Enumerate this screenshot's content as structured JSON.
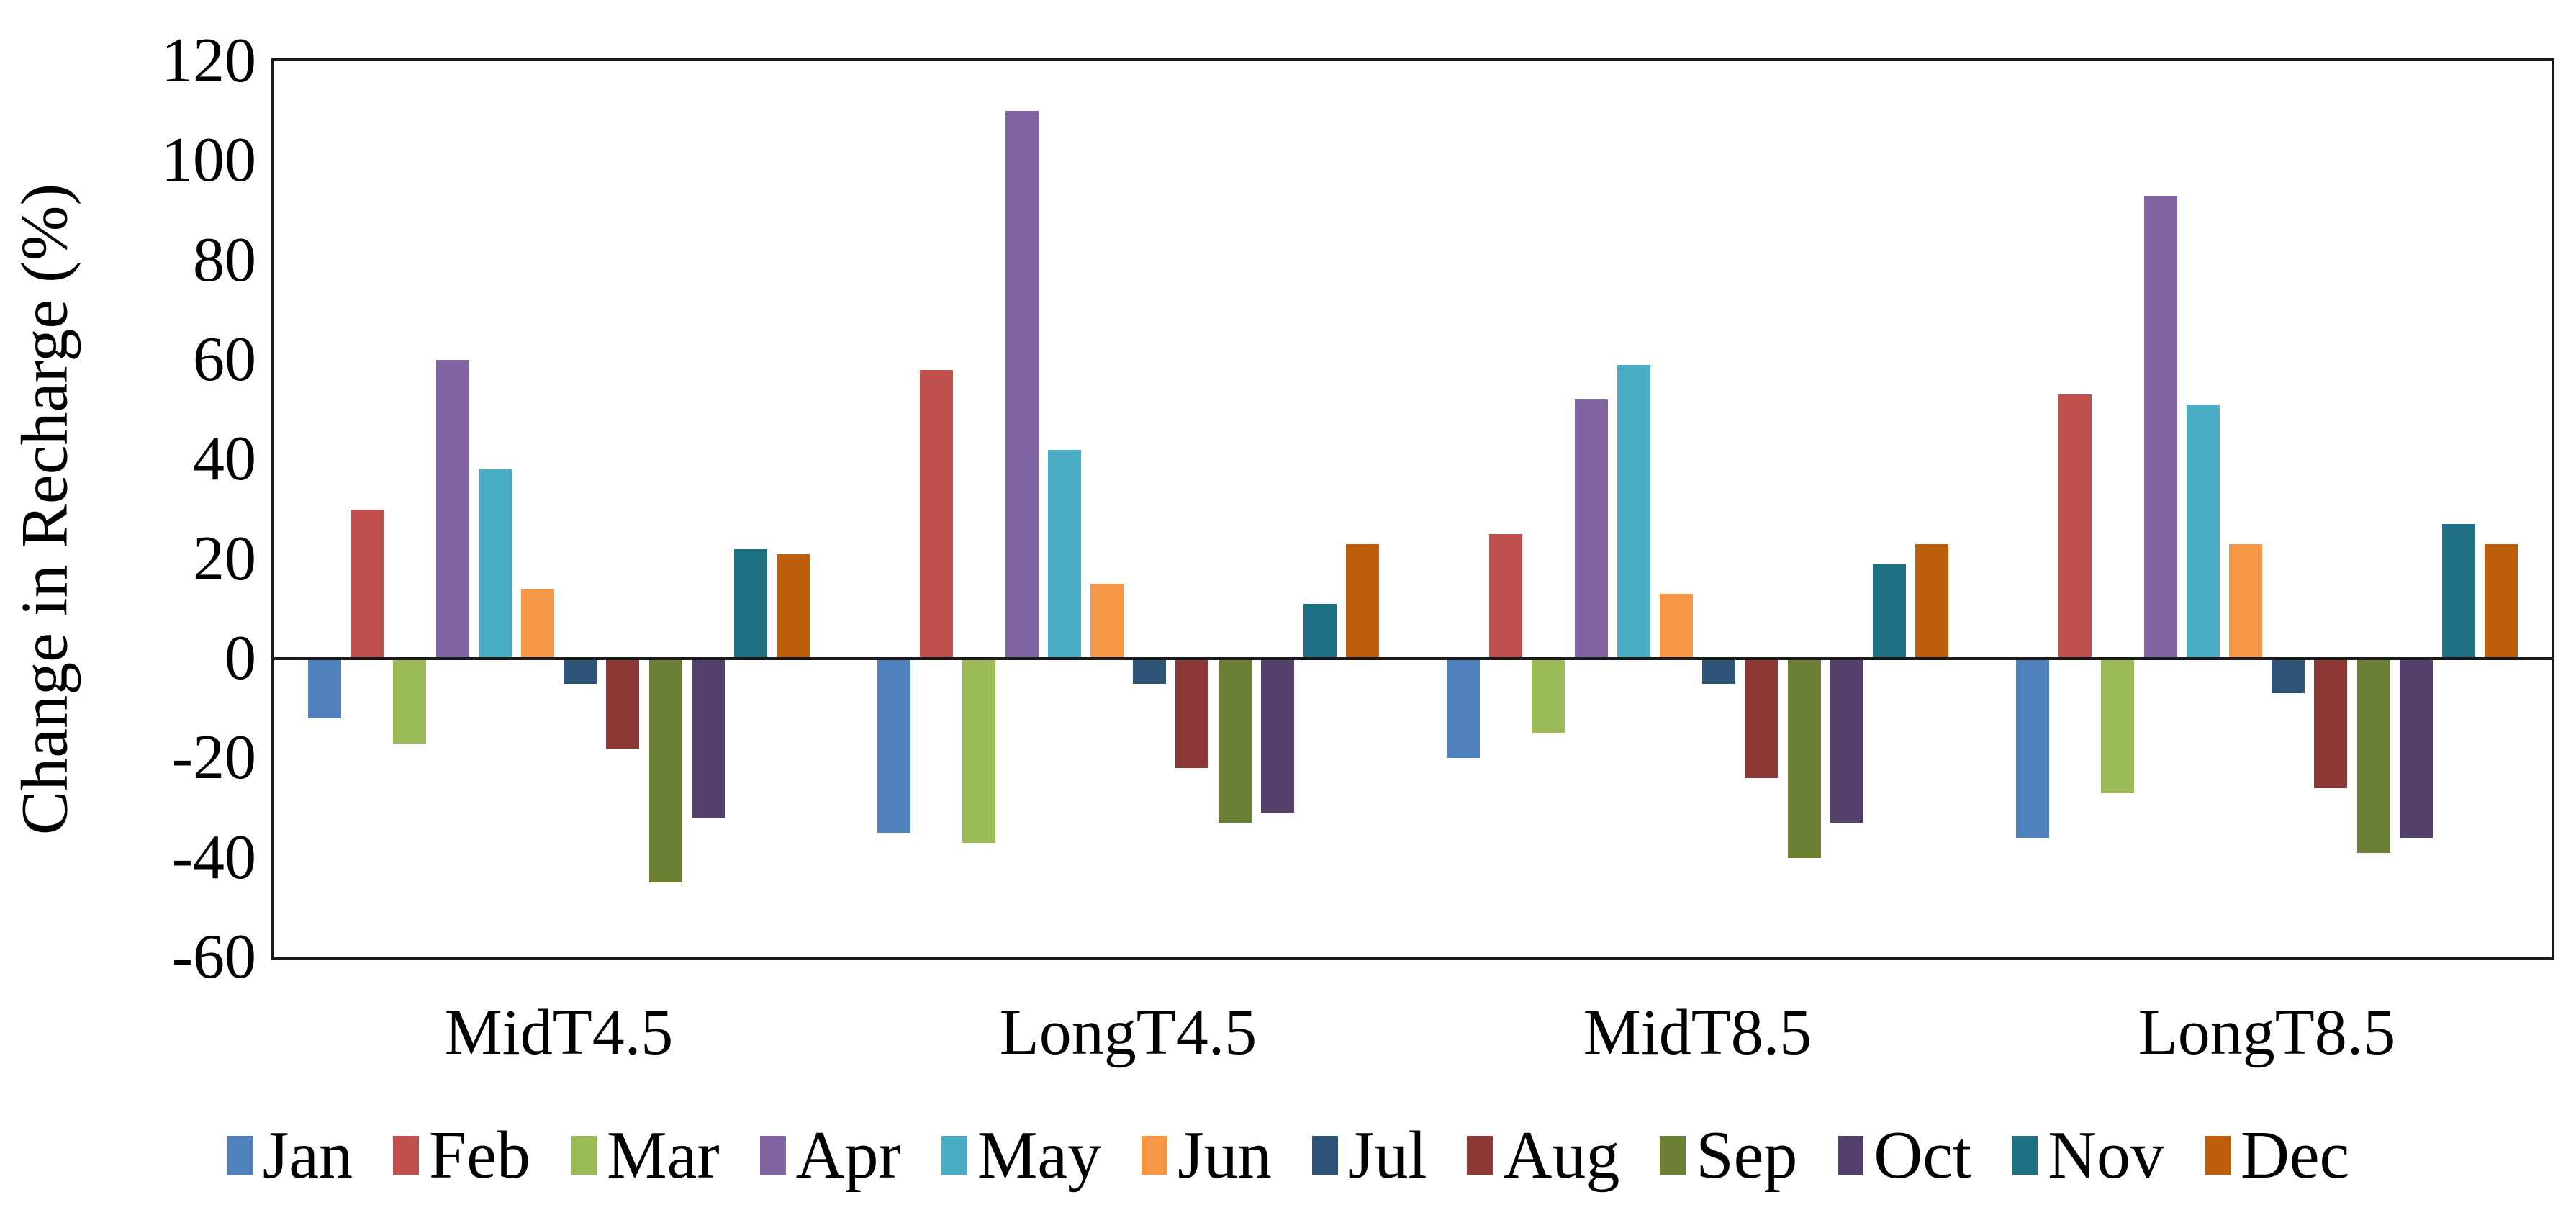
{
  "chart_data": {
    "type": "bar",
    "title": "",
    "xlabel": "",
    "ylabel": "Change in Recharge (%)",
    "ylim": [
      -60,
      120
    ],
    "ytick_step": 20,
    "grid": false,
    "legend_position": "bottom",
    "plot_border_color": "#1a1a1a",
    "categories": [
      "MidT4.5",
      "LongT4.5",
      "MidT8.5",
      "LongT8.5"
    ],
    "series": [
      {
        "name": "Jan",
        "color": "#4F81BD",
        "values": [
          -12,
          -35,
          -20,
          -36
        ]
      },
      {
        "name": "Feb",
        "color": "#C0504D",
        "values": [
          30,
          58,
          25,
          53
        ]
      },
      {
        "name": "Mar",
        "color": "#9BBB59",
        "values": [
          -17,
          -37,
          -15,
          -27
        ]
      },
      {
        "name": "Apr",
        "color": "#8064A2",
        "values": [
          60,
          110,
          52,
          93
        ]
      },
      {
        "name": "May",
        "color": "#4BACC6",
        "values": [
          38,
          42,
          59,
          51
        ]
      },
      {
        "name": "Jun",
        "color": "#F79646",
        "values": [
          14,
          15,
          13,
          23
        ]
      },
      {
        "name": "Jul",
        "color": "#2E5477",
        "values": [
          -5,
          -5,
          -5,
          -7
        ]
      },
      {
        "name": "Aug",
        "color": "#8C3836",
        "values": [
          -18,
          -22,
          -24,
          -26
        ]
      },
      {
        "name": "Sep",
        "color": "#6B7F35",
        "values": [
          -45,
          -33,
          -40,
          -39
        ]
      },
      {
        "name": "Oct",
        "color": "#54406B",
        "values": [
          -32,
          -31,
          -33,
          -36
        ]
      },
      {
        "name": "Nov",
        "color": "#1F7082",
        "values": [
          22,
          11,
          19,
          27
        ]
      },
      {
        "name": "Dec",
        "color": "#BE5E0C",
        "values": [
          21,
          23,
          23,
          23
        ]
      }
    ]
  }
}
